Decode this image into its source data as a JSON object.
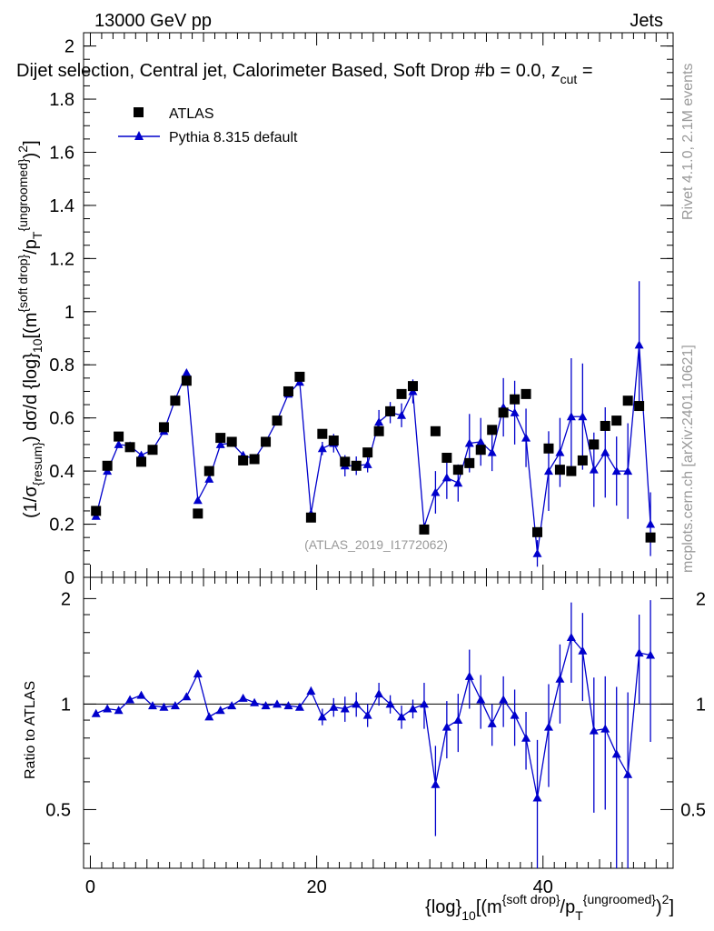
{
  "header": {
    "energy_label": "13000 GeV pp",
    "category_label": "Jets",
    "plot_title": "Dijet selection, Central jet, Calorimeter Based, Soft Drop #b = 0.0, z",
    "plot_title_sub": "cut",
    "plot_title_tail": " ="
  },
  "side_labels": {
    "rivet": "Rivet 4.1.0,  2.1M events",
    "mcplots": "mcplots.cern.ch [arXiv:2401.10621]"
  },
  "watermark": "(ATLAS_2019_I1772062)",
  "axes": {
    "main_ylabel_pre": "(1/σ",
    "main_ylabel_resum": "{resum}",
    "main_ylabel_mid": ") dσ/d {log}",
    "main_ylabel_10": "10",
    "main_ylabel_post": "[(m",
    "main_ylabel_sd": "{soft drop}",
    "main_ylabel_slash": "/p",
    "main_ylabel_T": "T",
    "main_ylabel_ungroomed": "{ungroomed}",
    "main_ylabel_end": ")",
    "main_ylabel_sq": "2",
    "main_ylabel_close": "]",
    "ratio_ylabel": "Ratio to ATLAS",
    "xlabel_log": "{log}",
    "xlabel_10": "10",
    "xlabel_open": "[(m",
    "xlabel_sd": "{soft drop}",
    "xlabel_slash": "/p",
    "xlabel_T": "T",
    "xlabel_ungroomed": "{ungroomed}",
    "xlabel_close": ")",
    "xlabel_sq": "2",
    "xlabel_end": "]"
  },
  "legend": {
    "data_label": "ATLAS",
    "mc_label": "Pythia 8.315 default"
  },
  "colors": {
    "data": "#000000",
    "mc": "#0000cc",
    "axis": "#000000",
    "watermark": "#999999"
  },
  "chart_data": {
    "type": "scatter",
    "x": [
      0.5,
      1.5,
      2.5,
      3.5,
      4.5,
      5.5,
      6.5,
      7.5,
      8.5,
      9.5,
      10.5,
      11.5,
      12.5,
      13.5,
      14.5,
      15.5,
      16.5,
      17.5,
      18.5,
      19.5,
      20.5,
      21.5,
      22.5,
      23.5,
      24.5,
      25.5,
      26.5,
      27.5,
      28.5,
      29.5,
      30.5,
      31.5,
      32.5,
      33.5,
      34.5,
      35.5,
      36.5,
      37.5,
      38.5,
      39.5,
      40.5,
      41.5,
      42.5,
      43.5,
      44.5,
      45.5,
      46.5,
      47.5,
      48.5,
      49.5
    ],
    "series": [
      {
        "name": "ATLAS",
        "values": [
          0.25,
          0.42,
          0.53,
          0.49,
          0.435,
          0.48,
          0.565,
          0.665,
          0.74,
          0.24,
          0.4,
          0.525,
          0.51,
          0.44,
          0.445,
          0.51,
          0.59,
          0.7,
          0.755,
          0.225,
          0.54,
          0.515,
          0.435,
          0.42,
          0.47,
          0.55,
          0.625,
          0.69,
          0.72,
          0.18,
          0.55,
          0.45,
          0.405,
          0.43,
          0.48,
          0.555,
          0.62,
          0.67,
          0.69,
          0.17,
          0.485,
          0.405,
          0.4,
          0.44,
          0.5,
          0.57,
          0.59,
          0.665,
          0.645,
          0.15
        ]
      },
      {
        "name": "Pythia 8.315 default",
        "values": [
          0.23,
          0.4,
          0.5,
          0.495,
          0.46,
          0.48,
          0.55,
          0.67,
          0.77,
          0.29,
          0.37,
          0.5,
          0.505,
          0.46,
          0.445,
          0.51,
          0.59,
          0.69,
          0.735,
          0.24,
          0.485,
          0.505,
          0.42,
          0.42,
          0.425,
          0.585,
          0.62,
          0.61,
          0.7,
          0.19,
          0.32,
          0.375,
          0.355,
          0.505,
          0.51,
          0.47,
          0.64,
          0.62,
          0.525,
          0.09,
          0.4,
          0.47,
          0.605,
          0.605,
          0.405,
          0.47,
          0.4,
          0.4,
          0.875,
          0.2
        ],
        "errors": [
          0,
          0,
          0,
          0,
          0,
          0,
          0,
          0,
          0,
          0,
          0,
          0,
          0,
          0,
          0,
          0,
          0,
          0,
          0,
          0,
          0.025,
          0.035,
          0.04,
          0.035,
          0.03,
          0.045,
          0.04,
          0.045,
          0.045,
          0,
          0.08,
          0.08,
          0.07,
          0.11,
          0.09,
          0.07,
          0.11,
          0.12,
          0.11,
          0.05,
          0.15,
          0.13,
          0.22,
          0.2,
          0.14,
          0.17,
          0.13,
          0.18,
          0.24,
          0.12
        ]
      }
    ],
    "ratio": [
      0.94,
      0.97,
      0.96,
      1.03,
      1.06,
      0.99,
      0.98,
      0.99,
      1.05,
      1.22,
      0.92,
      0.96,
      0.99,
      1.04,
      1.01,
      0.99,
      1.0,
      0.99,
      0.98,
      1.09,
      0.92,
      0.98,
      0.97,
      1.0,
      0.93,
      1.07,
      1.0,
      0.92,
      0.97,
      1.0,
      0.59,
      0.86,
      0.9,
      1.2,
      1.03,
      0.88,
      1.03,
      0.93,
      0.8,
      0.54,
      0.86,
      1.18,
      1.55,
      1.42,
      0.84,
      0.85,
      0.72,
      0.63,
      1.4,
      1.38
    ],
    "ratio_errors": [
      0,
      0,
      0,
      0,
      0,
      0,
      0,
      0,
      0,
      0,
      0,
      0,
      0,
      0,
      0,
      0,
      0,
      0,
      0,
      0.03,
      0.05,
      0.06,
      0.08,
      0.08,
      0.07,
      0.08,
      0.06,
      0.07,
      0.06,
      0.15,
      0.17,
      0.16,
      0.17,
      0.23,
      0.18,
      0.12,
      0.17,
      0.17,
      0.15,
      0.25,
      0.28,
      0.3,
      0.4,
      0.4,
      0.35,
      0.35,
      0.4,
      0.45,
      0.4,
      0.6
    ],
    "title": "Dijet selection, Central jet, Calorimeter Based, Soft Drop #b = 0.0, z_cut =",
    "xlabel": "{log}_10[(m^{soft drop}/p_T^{ungroomed})^2]",
    "ylabel": "(1/σ_{resum}) dσ/d {log}_10[(m^{soft drop}/p_T^{ungroomed})^2]",
    "ratio_ylabel": "Ratio to ATLAS",
    "xlim": [
      -0.6,
      51.5
    ],
    "ylim": [
      0,
      2.05
    ],
    "ratio_ylim": [
      0.34,
      2.3
    ],
    "x_ticks": [
      0,
      20,
      40
    ],
    "y_ticks": [
      0,
      0.2,
      0.4,
      0.6,
      0.8,
      1,
      1.2,
      1.4,
      1.6,
      1.8,
      2
    ],
    "ratio_ticks": [
      0.5,
      1,
      2
    ],
    "grid": false,
    "legend_position": "top-left"
  }
}
